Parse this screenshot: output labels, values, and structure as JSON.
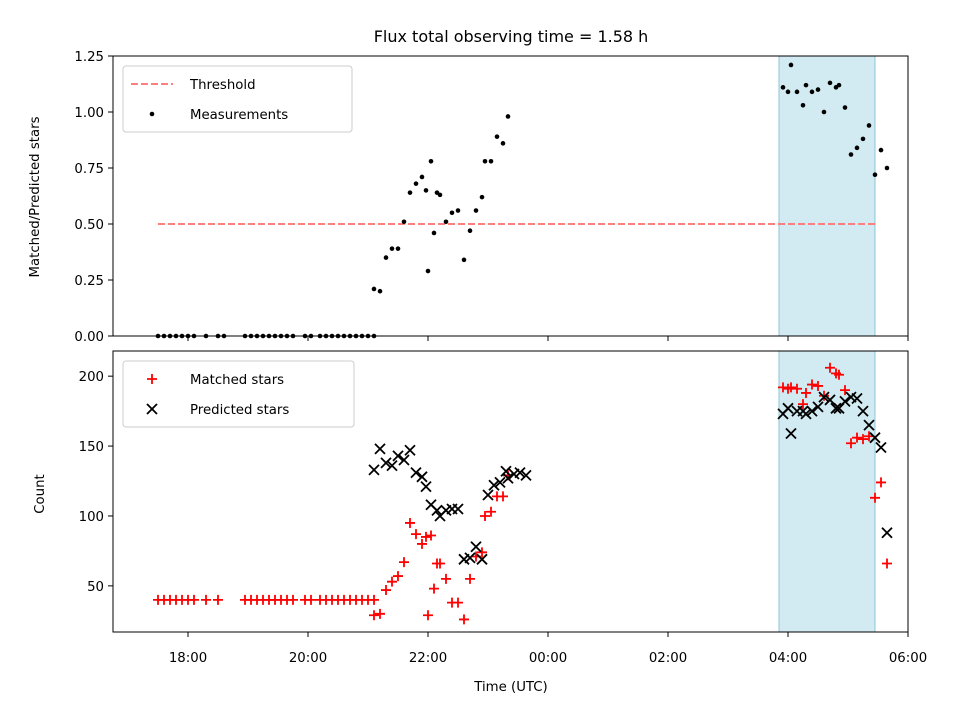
{
  "chart_data": [
    {
      "type": "scatter",
      "title": "Flux total observing time = 1.58 h",
      "xlabel": "",
      "ylabel": "Matched/Predicted stars",
      "xlim_hours": [
        16.75,
        30.0
      ],
      "ylim": [
        0,
        1.25
      ],
      "yticks": [
        "0.00",
        "0.25",
        "0.50",
        "0.75",
        "1.00",
        "1.25"
      ],
      "highlight_span_hours": [
        27.85,
        29.45
      ],
      "threshold": {
        "name": "Threshold",
        "value": 0.5,
        "x_range_hours": [
          17.5,
          29.45
        ],
        "color": "#ff7f7f"
      },
      "legend": {
        "position": "top-left",
        "entries": [
          "Threshold",
          "Measurements"
        ]
      },
      "series": [
        {
          "name": "Measurements",
          "color": "#000000",
          "points": [
            [
              "17:30",
              0
            ],
            [
              "17:36",
              0
            ],
            [
              "17:42",
              0
            ],
            [
              "17:48",
              0
            ],
            [
              "17:54",
              0
            ],
            [
              "18:00",
              0
            ],
            [
              "18:06",
              0
            ],
            [
              "18:18",
              0
            ],
            [
              "18:30",
              0
            ],
            [
              "18:36",
              0
            ],
            [
              "18:57",
              0
            ],
            [
              "19:03",
              0
            ],
            [
              "19:09",
              0
            ],
            [
              "19:15",
              0
            ],
            [
              "19:21",
              0
            ],
            [
              "19:27",
              0
            ],
            [
              "19:33",
              0
            ],
            [
              "19:39",
              0
            ],
            [
              "19:45",
              0
            ],
            [
              "19:57",
              0
            ],
            [
              "20:03",
              0
            ],
            [
              "20:12",
              0
            ],
            [
              "20:18",
              0
            ],
            [
              "20:24",
              0
            ],
            [
              "20:30",
              0
            ],
            [
              "20:36",
              0
            ],
            [
              "20:42",
              0
            ],
            [
              "20:48",
              0
            ],
            [
              "20:54",
              0
            ],
            [
              "21:00",
              0
            ],
            [
              "21:06",
              0
            ],
            [
              "21:06",
              0.21
            ],
            [
              "21:12",
              0.2
            ],
            [
              "21:18",
              0.35
            ],
            [
              "21:24",
              0.39
            ],
            [
              "21:30",
              0.39
            ],
            [
              "21:36",
              0.51
            ],
            [
              "21:42",
              0.64
            ],
            [
              "21:48",
              0.68
            ],
            [
              "21:54",
              0.71
            ],
            [
              "21:58",
              0.65
            ],
            [
              "22:03",
              0.78
            ],
            [
              "22:09",
              0.64
            ],
            [
              "22:00",
              0.29
            ],
            [
              "22:06",
              0.46
            ],
            [
              "22:12",
              0.63
            ],
            [
              "22:18",
              0.51
            ],
            [
              "22:24",
              0.55
            ],
            [
              "22:30",
              0.56
            ],
            [
              "22:36",
              0.34
            ],
            [
              "22:42",
              0.47
            ],
            [
              "22:48",
              0.56
            ],
            [
              "22:54",
              0.62
            ],
            [
              "22:57",
              0.78
            ],
            [
              "23:03",
              0.78
            ],
            [
              "23:09",
              0.89
            ],
            [
              "23:15",
              0.86
            ],
            [
              "23:20",
              0.98
            ],
            [
              "27:55",
              1.11
            ],
            [
              "28:00",
              1.09
            ],
            [
              "28:03",
              1.21
            ],
            [
              "28:09",
              1.09
            ],
            [
              "28:15",
              1.03
            ],
            [
              "28:18",
              1.12
            ],
            [
              "28:24",
              1.09
            ],
            [
              "28:30",
              1.1
            ],
            [
              "28:36",
              1.0
            ],
            [
              "28:42",
              1.13
            ],
            [
              "28:48",
              1.11
            ],
            [
              "28:51",
              1.12
            ],
            [
              "28:57",
              1.02
            ],
            [
              "29:03",
              0.81
            ],
            [
              "29:09",
              0.84
            ],
            [
              "29:15",
              0.88
            ],
            [
              "29:21",
              0.94
            ],
            [
              "29:27",
              0.72
            ],
            [
              "29:33",
              0.83
            ],
            [
              "29:39",
              0.75
            ]
          ]
        }
      ]
    },
    {
      "type": "scatter",
      "title": "",
      "xlabel": "Time (UTC)",
      "ylabel": "Count",
      "xlim_hours": [
        16.75,
        30.0
      ],
      "ylim": [
        17,
        218
      ],
      "yticks": [
        "50",
        "100",
        "150",
        "200"
      ],
      "xticks": [
        "18:00",
        "20:00",
        "22:00",
        "00:00",
        "02:00",
        "04:00",
        "06:00"
      ],
      "highlight_span_hours": [
        27.85,
        29.45
      ],
      "legend": {
        "position": "top-left",
        "entries": [
          "Matched stars",
          "Predicted stars"
        ]
      },
      "series": [
        {
          "name": "Matched stars",
          "marker": "plus",
          "color": "#ff0000",
          "points": [
            [
              "17:30",
              40
            ],
            [
              "17:36",
              40
            ],
            [
              "17:42",
              40
            ],
            [
              "17:48",
              40
            ],
            [
              "17:54",
              40
            ],
            [
              "18:00",
              40
            ],
            [
              "18:06",
              40
            ],
            [
              "18:18",
              40
            ],
            [
              "18:30",
              40
            ],
            [
              "18:57",
              40
            ],
            [
              "19:03",
              40
            ],
            [
              "19:09",
              40
            ],
            [
              "19:15",
              40
            ],
            [
              "19:21",
              40
            ],
            [
              "19:27",
              40
            ],
            [
              "19:33",
              40
            ],
            [
              "19:39",
              40
            ],
            [
              "19:45",
              40
            ],
            [
              "19:57",
              40
            ],
            [
              "20:03",
              40
            ],
            [
              "20:12",
              40
            ],
            [
              "20:18",
              40
            ],
            [
              "20:24",
              40
            ],
            [
              "20:30",
              40
            ],
            [
              "20:36",
              40
            ],
            [
              "20:42",
              40
            ],
            [
              "20:48",
              40
            ],
            [
              "20:54",
              40
            ],
            [
              "21:00",
              40
            ],
            [
              "21:06",
              40
            ],
            [
              "21:06",
              29
            ],
            [
              "21:12",
              30
            ],
            [
              "21:18",
              47
            ],
            [
              "21:24",
              53
            ],
            [
              "21:30",
              57
            ],
            [
              "21:36",
              67
            ],
            [
              "21:42",
              95
            ],
            [
              "21:48",
              87
            ],
            [
              "21:54",
              80
            ],
            [
              "21:58",
              85
            ],
            [
              "22:03",
              86
            ],
            [
              "22:09",
              66
            ],
            [
              "22:00",
              29
            ],
            [
              "22:06",
              48
            ],
            [
              "22:12",
              66
            ],
            [
              "22:18",
              55
            ],
            [
              "22:24",
              38
            ],
            [
              "22:30",
              38
            ],
            [
              "22:36",
              26
            ],
            [
              "22:42",
              55
            ],
            [
              "22:48",
              71
            ],
            [
              "22:54",
              74
            ],
            [
              "22:57",
              100
            ],
            [
              "23:03",
              103
            ],
            [
              "23:09",
              114
            ],
            [
              "23:15",
              114
            ],
            [
              "23:20",
              129
            ],
            [
              "27:55",
              192
            ],
            [
              "28:00",
              191
            ],
            [
              "28:03",
              192
            ],
            [
              "28:09",
              191
            ],
            [
              "28:15",
              180
            ],
            [
              "28:18",
              188
            ],
            [
              "28:24",
              194
            ],
            [
              "28:30",
              193
            ],
            [
              "28:36",
              186
            ],
            [
              "28:42",
              206
            ],
            [
              "28:48",
              202
            ],
            [
              "28:51",
              201
            ],
            [
              "28:57",
              190
            ],
            [
              "29:03",
              152
            ],
            [
              "29:09",
              156
            ],
            [
              "29:15",
              155
            ],
            [
              "29:21",
              157
            ],
            [
              "29:27",
              113
            ],
            [
              "29:33",
              124
            ],
            [
              "29:39",
              66
            ]
          ]
        },
        {
          "name": "Predicted stars",
          "marker": "x",
          "color": "#000000",
          "points": [
            [
              "21:06",
              133
            ],
            [
              "21:12",
              148
            ],
            [
              "21:18",
              138
            ],
            [
              "21:24",
              136
            ],
            [
              "21:30",
              143
            ],
            [
              "21:36",
              140
            ],
            [
              "21:42",
              147
            ],
            [
              "21:48",
              131
            ],
            [
              "21:54",
              128
            ],
            [
              "21:58",
              121
            ],
            [
              "22:03",
              108
            ],
            [
              "22:09",
              104
            ],
            [
              "22:12",
              100
            ],
            [
              "22:18",
              104
            ],
            [
              "22:24",
              105
            ],
            [
              "22:30",
              105
            ],
            [
              "22:36",
              69
            ],
            [
              "22:42",
              70
            ],
            [
              "22:48",
              78
            ],
            [
              "22:54",
              69
            ],
            [
              "23:00",
              115
            ],
            [
              "23:06",
              122
            ],
            [
              "23:12",
              124
            ],
            [
              "23:18",
              132
            ],
            [
              "23:20",
              127
            ],
            [
              "23:26",
              130
            ],
            [
              "23:32",
              131
            ],
            [
              "23:38",
              129
            ],
            [
              "27:55",
              173
            ],
            [
              "28:00",
              177
            ],
            [
              "28:03",
              159
            ],
            [
              "28:09",
              175
            ],
            [
              "28:15",
              175
            ],
            [
              "28:18",
              173
            ],
            [
              "28:24",
              175
            ],
            [
              "28:30",
              178
            ],
            [
              "28:36",
              185
            ],
            [
              "28:42",
              183
            ],
            [
              "28:48",
              177
            ],
            [
              "28:51",
              177
            ],
            [
              "28:57",
              182
            ],
            [
              "29:03",
              185
            ],
            [
              "29:09",
              184
            ],
            [
              "29:15",
              175
            ],
            [
              "29:21",
              165
            ],
            [
              "29:27",
              156
            ],
            [
              "29:33",
              149
            ],
            [
              "29:39",
              88
            ]
          ]
        }
      ]
    }
  ]
}
